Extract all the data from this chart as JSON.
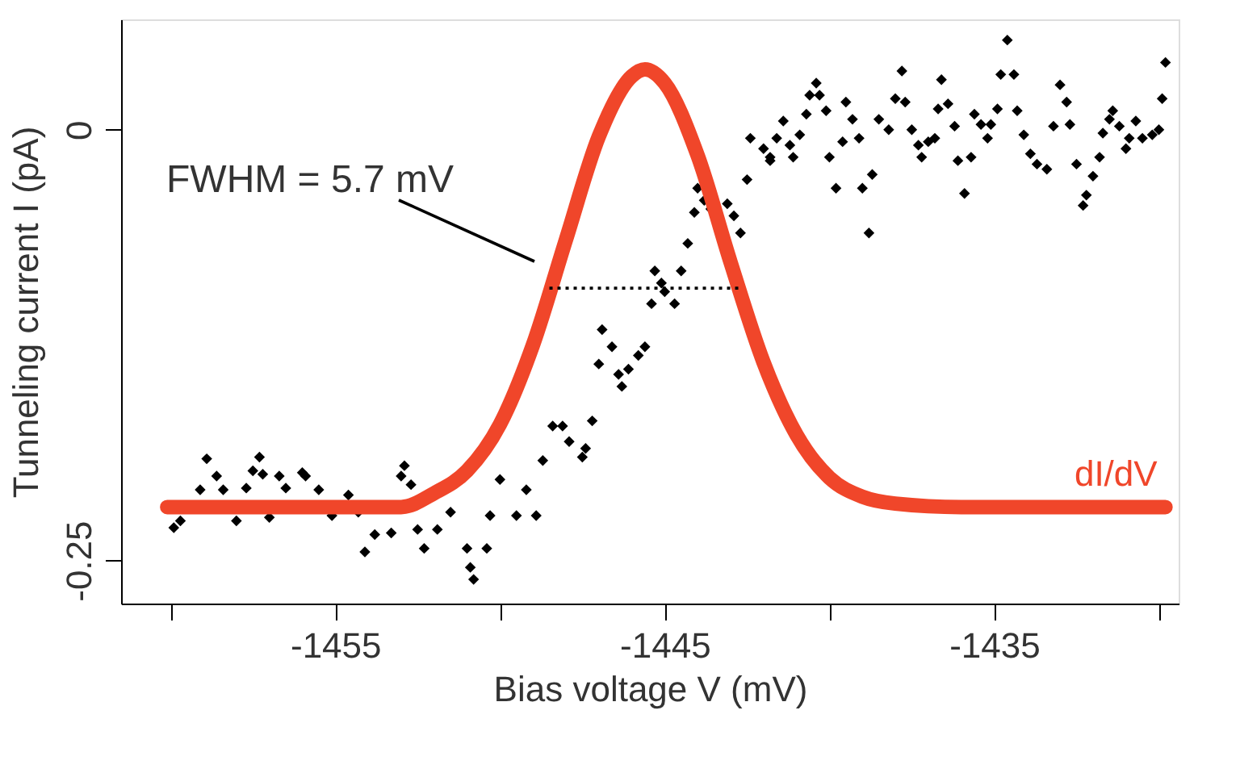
{
  "chart_data": {
    "type": "scatter",
    "xlabel": "Bias voltage V (mV)",
    "ylabel": "Tunneling current I (pA)",
    "xlim": [
      -1461.5,
      -1429.4
    ],
    "ylim": [
      -0.275,
      0.064
    ],
    "xticks": [
      {
        "value": -1460,
        "label": null
      },
      -1455,
      {
        "value": -1450,
        "label": null
      },
      -1445,
      {
        "value": -1440,
        "label": null
      },
      -1435,
      {
        "value": -1430,
        "label": null
      }
    ],
    "yticks": [
      -0.25,
      0
    ],
    "grid": false,
    "legend": false,
    "annotations": [
      "FWHM = 5.7 mV"
    ],
    "series": [
      {
        "color": "#000000",
        "marker": "diamond",
        "x": [
          -1459.9,
          -1459.7,
          -1459.1,
          -1458.9,
          -1458.6,
          -1458.4,
          -1458.0,
          -1457.7,
          -1457.5,
          -1457.3,
          -1457.2,
          -1457.0,
          -1456.7,
          -1456.5,
          -1456.0,
          -1455.9,
          -1455.5,
          -1455.1,
          -1454.6,
          -1454.3,
          -1454.1,
          -1453.8,
          -1453.3,
          -1453.0,
          -1452.9,
          -1452.7,
          -1452.5,
          -1452.3,
          -1451.9,
          -1451.5,
          -1451.0,
          -1450.9,
          -1450.8,
          -1450.4,
          -1450.3,
          -1450.0,
          -1449.5,
          -1449.2,
          -1448.9,
          -1448.7,
          -1448.4,
          -1448.1,
          -1447.9,
          -1447.5,
          -1447.4,
          -1447.2,
          -1447.0,
          -1446.9,
          -1446.6,
          -1446.4,
          -1446.3,
          -1446.1,
          -1445.8,
          -1445.6,
          -1445.4,
          -1445.3,
          -1445.1,
          -1445.0,
          -1444.7,
          -1444.5,
          -1444.3,
          -1444.1,
          -1444.0,
          -1443.8,
          -1443.6,
          -1443.1,
          -1442.9,
          -1442.7,
          -1442.5,
          -1442.4,
          -1442.0,
          -1441.8,
          -1441.8,
          -1441.6,
          -1441.4,
          -1441.2,
          -1441.1,
          -1440.9,
          -1440.7,
          -1440.6,
          -1440.4,
          -1440.3,
          -1440.1,
          -1440.0,
          -1439.8,
          -1439.6,
          -1439.5,
          -1439.3,
          -1439.1,
          -1439.0,
          -1438.8,
          -1438.7,
          -1438.5,
          -1438.2,
          -1438.0,
          -1437.8,
          -1437.7,
          -1437.5,
          -1437.3,
          -1437.2,
          -1437.0,
          -1436.8,
          -1436.7,
          -1436.6,
          -1436.4,
          -1436.2,
          -1436.1,
          -1435.9,
          -1435.7,
          -1435.6,
          -1435.4,
          -1435.2,
          -1435.1,
          -1434.9,
          -1434.8,
          -1434.6,
          -1434.4,
          -1434.3,
          -1434.1,
          -1433.9,
          -1433.7,
          -1433.4,
          -1433.2,
          -1433.0,
          -1432.8,
          -1432.7,
          -1432.5,
          -1432.3,
          -1432.2,
          -1432.0,
          -1431.8,
          -1431.7,
          -1431.5,
          -1431.4,
          -1431.2,
          -1431.0,
          -1430.9,
          -1430.7,
          -1430.5,
          -1430.2,
          -1430.0,
          -1429.9,
          -1429.8
        ],
        "values": [
          -0.231,
          -0.227,
          -0.209,
          -0.191,
          -0.201,
          -0.209,
          -0.227,
          -0.208,
          -0.198,
          -0.19,
          -0.2,
          -0.225,
          -0.201,
          -0.208,
          -0.199,
          -0.201,
          -0.209,
          -0.224,
          -0.212,
          -0.222,
          -0.245,
          -0.235,
          -0.234,
          -0.201,
          -0.195,
          -0.206,
          -0.232,
          -0.243,
          -0.232,
          -0.222,
          -0.243,
          -0.254,
          -0.261,
          -0.243,
          -0.224,
          -0.203,
          -0.224,
          -0.209,
          -0.224,
          -0.192,
          -0.172,
          -0.172,
          -0.181,
          -0.19,
          -0.185,
          -0.169,
          -0.136,
          -0.116,
          -0.126,
          -0.142,
          -0.149,
          -0.139,
          -0.131,
          -0.126,
          -0.101,
          -0.082,
          -0.089,
          -0.094,
          -0.101,
          -0.082,
          -0.066,
          -0.048,
          -0.034,
          -0.041,
          -0.046,
          -0.043,
          -0.05,
          -0.06,
          -0.029,
          -0.005,
          -0.011,
          -0.016,
          -0.018,
          -0.005,
          0.005,
          -0.009,
          -0.016,
          -0.003,
          0.009,
          0.02,
          0.027,
          0.02,
          0.011,
          -0.016,
          -0.034,
          -0.007,
          0.016,
          0.006,
          -0.005,
          -0.034,
          -0.06,
          -0.026,
          0.006,
          0.0,
          0.018,
          0.034,
          0.016,
          0.0,
          -0.009,
          -0.016,
          -0.007,
          -0.005,
          0.012,
          0.029,
          0.015,
          0.002,
          -0.018,
          -0.037,
          -0.016,
          0.009,
          0.003,
          -0.005,
          0.003,
          0.012,
          0.032,
          0.052,
          0.032,
          0.011,
          -0.003,
          -0.014,
          -0.02,
          -0.023,
          0.002,
          0.026,
          0.016,
          0.003,
          -0.02,
          -0.044,
          -0.038,
          -0.027,
          -0.016,
          -0.002,
          0.006,
          0.011,
          0.002,
          -0.011,
          -0.005,
          0.005,
          -0.005,
          -0.003,
          0.0,
          0.018,
          0.039
        ]
      },
      {
        "type": "line",
        "name": "dI/dV",
        "color": "#f0462a",
        "x": [
          -1460.1,
          -1453,
          -1452,
          -1451,
          -1450,
          -1449,
          -1448,
          -1447,
          -1446,
          -1445.6,
          -1445,
          -1444,
          -1443,
          -1442,
          -1441,
          -1440,
          -1439,
          -1438,
          -1436,
          -1429.8
        ],
        "values": [
          -0.219,
          -0.219,
          -0.211,
          -0.198,
          -0.171,
          -0.125,
          -0.064,
          -0.004,
          0.031,
          0.035,
          0.027,
          -0.015,
          -0.077,
          -0.135,
          -0.177,
          -0.202,
          -0.213,
          -0.217,
          -0.219,
          -0.219
        ]
      },
      {
        "type": "line",
        "color": "#000000",
        "line_style": "dotted",
        "x": [
          -1448.5,
          -1442.7
        ],
        "values": [
          -0.092,
          -0.092
        ]
      }
    ]
  }
}
